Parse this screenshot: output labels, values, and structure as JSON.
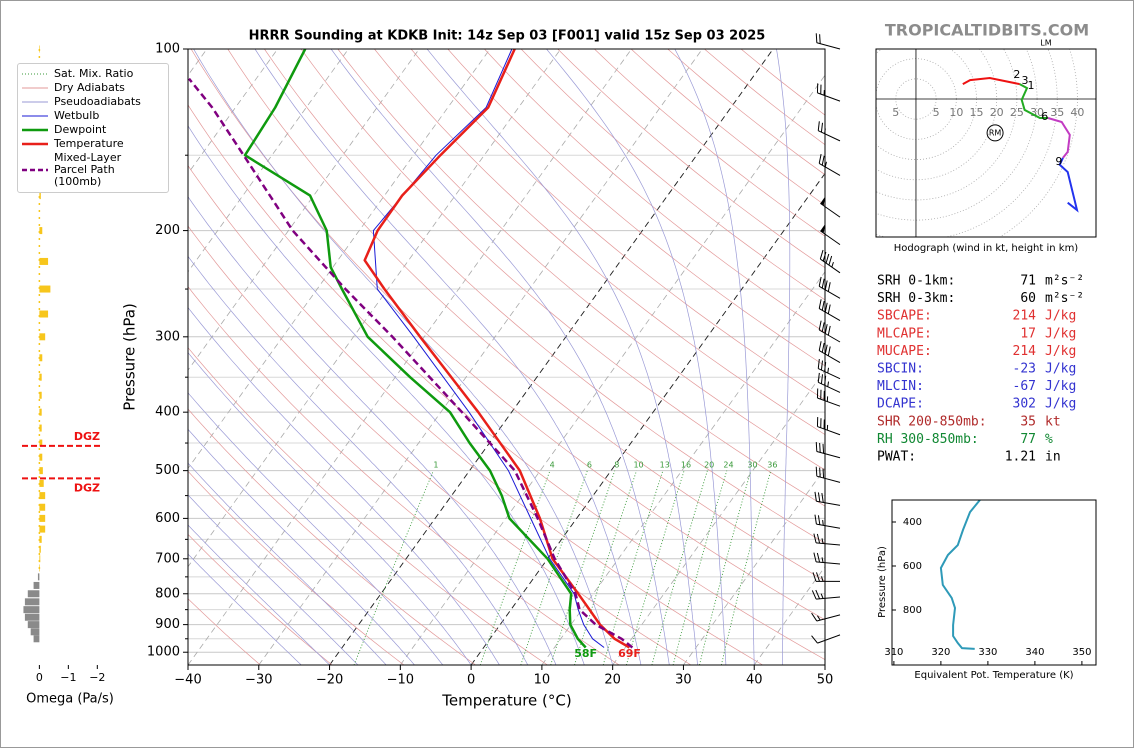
{
  "site_title": "TROPICALTIDBITS.COM",
  "chart_data": [
    {
      "type": "skewt",
      "title": "HRRR Sounding at KDKB Init: 14z Sep 03 [F001] valid 15z Sep 03 2025",
      "xlabel": "Temperature (°C)",
      "ylabel": "Pressure (hPa)",
      "xlim": [
        -40,
        50
      ],
      "ylim": [
        1050,
        100
      ],
      "log_y": true,
      "xticks": [
        {
          "value": -40,
          "label": "−40"
        },
        {
          "value": -30,
          "label": "−30"
        },
        {
          "value": -20,
          "label": "−20"
        },
        {
          "value": -10,
          "label": "−10"
        },
        0,
        10,
        20,
        30,
        40,
        50
      ],
      "yticks": [
        100,
        200,
        300,
        400,
        500,
        600,
        700,
        800,
        900,
        1000
      ],
      "grid_minor": [
        150,
        250,
        350,
        450,
        550,
        650,
        750,
        850,
        950
      ],
      "highlight_isotherms": [
        -20,
        0
      ],
      "mixing_ratios": [
        1,
        4,
        6,
        8,
        10,
        13,
        16,
        20,
        24,
        30,
        36
      ],
      "background": [
        {
          "name": "Sat. Mix. Ratio",
          "color": "#3a9a3a"
        },
        {
          "name": "Dry Adiabats",
          "color": "#e39a9a"
        },
        {
          "name": "Pseudoadiabats",
          "color": "#9a9ad6"
        }
      ],
      "series": [
        {
          "name": "Wetbulb",
          "color": "#1a1ad6",
          "style": "thin",
          "pressure": [
            982,
            950,
            900,
            850,
            800,
            700,
            600,
            500,
            400,
            300,
            250,
            200,
            150,
            125,
            100
          ],
          "values": [
            17,
            14.5,
            11.8,
            9.5,
            7.3,
            0.3,
            -6.5,
            -14.5,
            -26,
            -41.5,
            -51.5,
            -58,
            -56.8,
            -54.6,
            -56.9
          ]
        },
        {
          "name": "Dewpoint",
          "color": "#0f9a0f",
          "style": "solid",
          "surface_label": "58F",
          "pressure": [
            982,
            950,
            900,
            850,
            800,
            700,
            600,
            550,
            500,
            450,
            400,
            350,
            300,
            250,
            230,
            200,
            175,
            150,
            125,
            100
          ],
          "values": [
            14.4,
            12.4,
            9.9,
            8.3,
            6.9,
            0,
            -9.5,
            -12.9,
            -17.1,
            -22.8,
            -28.7,
            -37.9,
            -48,
            -56.5,
            -60.3,
            -64.6,
            -70.5,
            -83.8,
            -84.4,
            -86.1
          ]
        },
        {
          "name": "Temperature",
          "color": "#e8201a",
          "style": "solid",
          "surface_label": "69F",
          "pressure": [
            982,
            950,
            900,
            850,
            800,
            700,
            600,
            500,
            400,
            300,
            250,
            224,
            200,
            175,
            150,
            125,
            100
          ],
          "values": [
            20.6,
            17.6,
            14.1,
            11.1,
            7.9,
            0.7,
            -5.2,
            -12.9,
            -24.7,
            -40.6,
            -50.5,
            -56.2,
            -57.4,
            -57.5,
            -56.2,
            -54.3,
            -56.5
          ]
        },
        {
          "name": "Mixed-Layer\nParcel Path (100mb)",
          "color": "#800080",
          "style": "dashed",
          "pressure": [
            982,
            950,
            900,
            850,
            800,
            700,
            600,
            500,
            400,
            300,
            250,
            200,
            150,
            125,
            112
          ],
          "values": [
            21.0,
            18.6,
            13.5,
            9.7,
            7.5,
            1,
            -5.5,
            -13.6,
            -27,
            -44.5,
            -56,
            -69.4,
            -84,
            -93.3,
            -99.5
          ]
        }
      ],
      "wind_barbs": {
        "pressure": [
          936,
          867,
          810,
          763,
          714,
          664,
          623,
          571,
          523,
          476,
          436,
          391,
          371,
          352,
          331,
          306,
          282,
          259,
          235,
          211,
          190,
          162,
          142,
          122,
          100
        ],
        "speed": [
          10,
          15,
          25,
          25,
          25,
          25,
          25,
          30,
          30,
          30,
          35,
          35,
          35,
          35,
          40,
          40,
          40,
          40,
          45,
          50,
          50,
          25,
          25,
          25,
          20
        ],
        "direction": [
          250,
          255,
          265,
          270,
          275,
          275,
          280,
          280,
          285,
          285,
          290,
          290,
          295,
          295,
          300,
          300,
          300,
          300,
          305,
          305,
          305,
          300,
          295,
          290,
          285
        ]
      }
    },
    {
      "type": "omega",
      "xlabel": "Omega (Pa/s)",
      "xlim": [
        0.6,
        -2.3
      ],
      "xticks": [
        0,
        {
          "value": -1,
          "label": "−1"
        },
        {
          "value": -2,
          "label": "−2"
        }
      ],
      "neg_color": "#f7c61c",
      "pos_color": "#8a8a8a",
      "pressure": [
        100,
        125,
        150,
        175,
        200,
        225,
        250,
        275,
        300,
        325,
        350,
        375,
        400,
        425,
        450,
        475,
        500,
        525,
        550,
        575,
        600,
        625,
        650,
        675,
        700,
        725,
        750,
        775,
        800,
        825,
        850,
        875,
        900,
        925,
        950
      ],
      "values": [
        -0.02,
        -0.02,
        -0.03,
        -0.05,
        -0.1,
        -0.3,
        -0.38,
        -0.3,
        -0.2,
        -0.1,
        -0.08,
        -0.08,
        -0.08,
        -0.08,
        -0.1,
        -0.1,
        -0.12,
        -0.15,
        -0.2,
        -0.2,
        -0.2,
        -0.2,
        -0.08,
        -0.05,
        -0.03,
        -0.02,
        0.05,
        0.2,
        0.4,
        0.5,
        0.55,
        0.5,
        0.4,
        0.3,
        0.2
      ],
      "dgz": [
        {
          "pressure": 455,
          "label": "DGZ"
        },
        {
          "pressure": 515,
          "label": "DGZ"
        }
      ]
    },
    {
      "type": "hodograph",
      "caption": "Hodograph (wind in kt, height in km)",
      "xlim": [
        -9.9,
        44.6
      ],
      "ylim": [
        -34.2,
        12.4
      ],
      "xticks": [
        {
          "value": -5,
          "label": "5"
        },
        5,
        10,
        15,
        20,
        25,
        30,
        35,
        40
      ],
      "series": [
        {
          "color": "#ee1111",
          "x": [
            11.6,
            13.4,
            18.3,
            25.7
          ],
          "values": [
            3.7,
            4.7,
            5.2,
            3.7
          ]
        },
        {
          "color": "#22aa22",
          "x": [
            25.7,
            27.5,
            26.2,
            26.9,
            30.7,
            32.7
          ],
          "values": [
            3.7,
            2.7,
            -0.2,
            -2.7,
            -4.7,
            -4.7
          ]
        },
        {
          "color": "#c23bc2",
          "x": [
            32.7,
            36.1,
            38.1,
            37.6,
            36.4
          ],
          "values": [
            -4.7,
            -5.7,
            -8.9,
            -13.1,
            -14.6
          ]
        },
        {
          "color": "#2233ee",
          "x": [
            36.4,
            35.6,
            37.6,
            39.9,
            37.6
          ],
          "values": [
            -14.6,
            -16.3,
            -18.1,
            -27.5,
            -25.7
          ]
        }
      ],
      "annotations": [
        {
          "text": "1",
          "x": 28.5,
          "y": 3.2
        },
        {
          "text": "2",
          "x": 25,
          "y": 5.9
        },
        {
          "text": "3",
          "x": 27,
          "y": 4.5
        },
        {
          "text": "6",
          "x": 31.9,
          "y": -4.5
        },
        {
          "text": "9",
          "x": 35.4,
          "y": -15.6
        },
        {
          "text": "RM",
          "x": 19.6,
          "y": -8.4,
          "circle": true
        },
        {
          "text": "LM",
          "x": 32.2,
          "y": 13.9
        }
      ]
    },
    {
      "type": "profile",
      "xlabel": "Equivalent Pot. Temperature (K)",
      "ylabel": "Pressure (hPa)",
      "xlim": [
        309.6,
        353
      ],
      "ylim": [
        1050,
        300
      ],
      "xticks": [
        310,
        320,
        330,
        340,
        350
      ],
      "yticks": [
        400,
        600,
        800
      ],
      "color": "#2e9ab8",
      "pressure": [
        300,
        355,
        436,
        505,
        550,
        609,
        686,
        745,
        791,
        868,
        918,
        950,
        973,
        977
      ],
      "values": [
        328.3,
        326.2,
        324.7,
        323.6,
        321.5,
        320,
        320.4,
        322.3,
        323,
        322.6,
        322.6,
        323.6,
        324.5,
        327.2
      ]
    }
  ],
  "stats": [
    {
      "label": "SRH 0-1km:",
      "value": 71,
      "unit": "m²s⁻²",
      "color": "#000000"
    },
    {
      "label": "SRH 0-3km:",
      "value": 60,
      "unit": "m²s⁻²",
      "color": "#000000"
    },
    {
      "label": "SBCAPE:",
      "value": 214,
      "unit": "J/kg",
      "color": "#e03030"
    },
    {
      "label": "MLCAPE:",
      "value": 17,
      "unit": "J/kg",
      "color": "#e03030"
    },
    {
      "label": "MUCAPE:",
      "value": 214,
      "unit": "J/kg",
      "color": "#e03030"
    },
    {
      "label": "SBCIN:",
      "value": -23,
      "unit": "J/kg",
      "color": "#3333d0"
    },
    {
      "label": "MLCIN:",
      "value": -67,
      "unit": "J/kg",
      "color": "#3333d0"
    },
    {
      "label": "DCAPE:",
      "value": 302,
      "unit": "J/kg",
      "color": "#3333d0"
    },
    {
      "label": "SHR 200-850mb:",
      "value": 35,
      "unit": "kt",
      "color": "#b02a2a"
    },
    {
      "label": "RH 300-850mb:",
      "value": 77,
      "unit": "%",
      "color": "#118833"
    },
    {
      "label": "PWAT:",
      "value": 1.21,
      "unit": "in",
      "color": "#000000"
    }
  ]
}
